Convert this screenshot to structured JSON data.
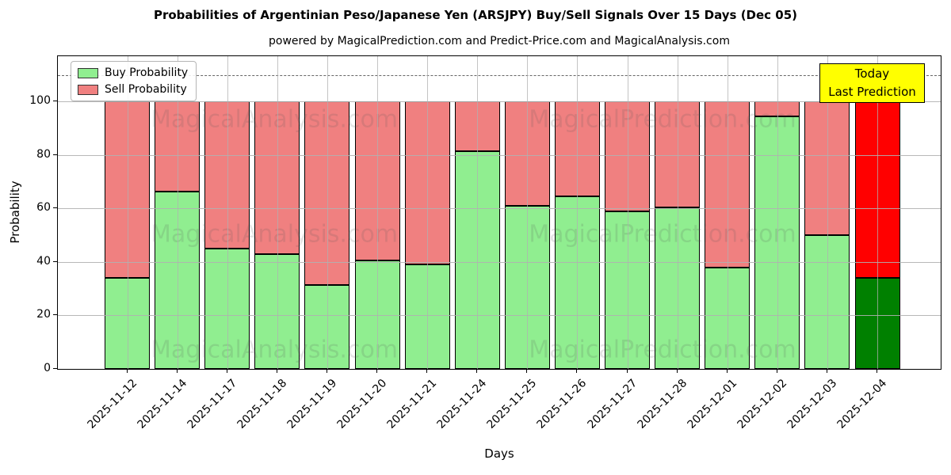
{
  "header": {
    "title": "Probabilities of Argentinian Peso/Japanese Yen (ARSJPY) Buy/Sell Signals Over 15 Days (Dec 05)",
    "subtitle": "powered by MagicalPrediction.com and Predict-Price.com and MagicalAnalysis.com"
  },
  "chart_data": {
    "type": "bar",
    "stacked": true,
    "title": "Probabilities of Argentinian Peso/Japanese Yen (ARSJPY) Buy/Sell Signals Over 15 Days (Dec 05)",
    "xlabel": "Days",
    "ylabel": "Probability",
    "ylim": [
      0,
      117
    ],
    "yticks": [
      0,
      20,
      40,
      60,
      80,
      100
    ],
    "dashed_line_y": 110,
    "grid": true,
    "categories": [
      "2025-11-12",
      "2025-11-14",
      "2025-11-17",
      "2025-11-18",
      "2025-11-19",
      "2025-11-20",
      "2025-11-21",
      "2025-11-24",
      "2025-11-25",
      "2025-11-26",
      "2025-11-27",
      "2025-11-28",
      "2025-12-01",
      "2025-12-02",
      "2025-12-03",
      "2025-12-04"
    ],
    "series": [
      {
        "name": "Buy Probability",
        "values": [
          34,
          66.5,
          45,
          43,
          31.5,
          40.5,
          39,
          81.5,
          61,
          64.5,
          59,
          60.5,
          38,
          94.5,
          50,
          34
        ]
      },
      {
        "name": "Sell Probability",
        "values": [
          66,
          33.5,
          55,
          57,
          68.5,
          59.5,
          61,
          18.5,
          39,
          35.5,
          41,
          39.5,
          62,
          5.5,
          50,
          66
        ]
      }
    ],
    "today_index": 15,
    "legend_position": "top-left",
    "colors": {
      "buy": "#90ee90",
      "sell": "#f08080",
      "buy_today": "#008000",
      "sell_today": "#ff0000",
      "edge": "#000000",
      "grid": "#b0b0b0"
    }
  },
  "annotation_box": {
    "lines": [
      "Today",
      "Last Prediction"
    ],
    "bg": "#ffff00",
    "border": "#000000"
  },
  "watermarks": {
    "left_text": "MagicalAnalysis.com",
    "right_text": "MagicalPrediction.com",
    "rows": 3
  }
}
